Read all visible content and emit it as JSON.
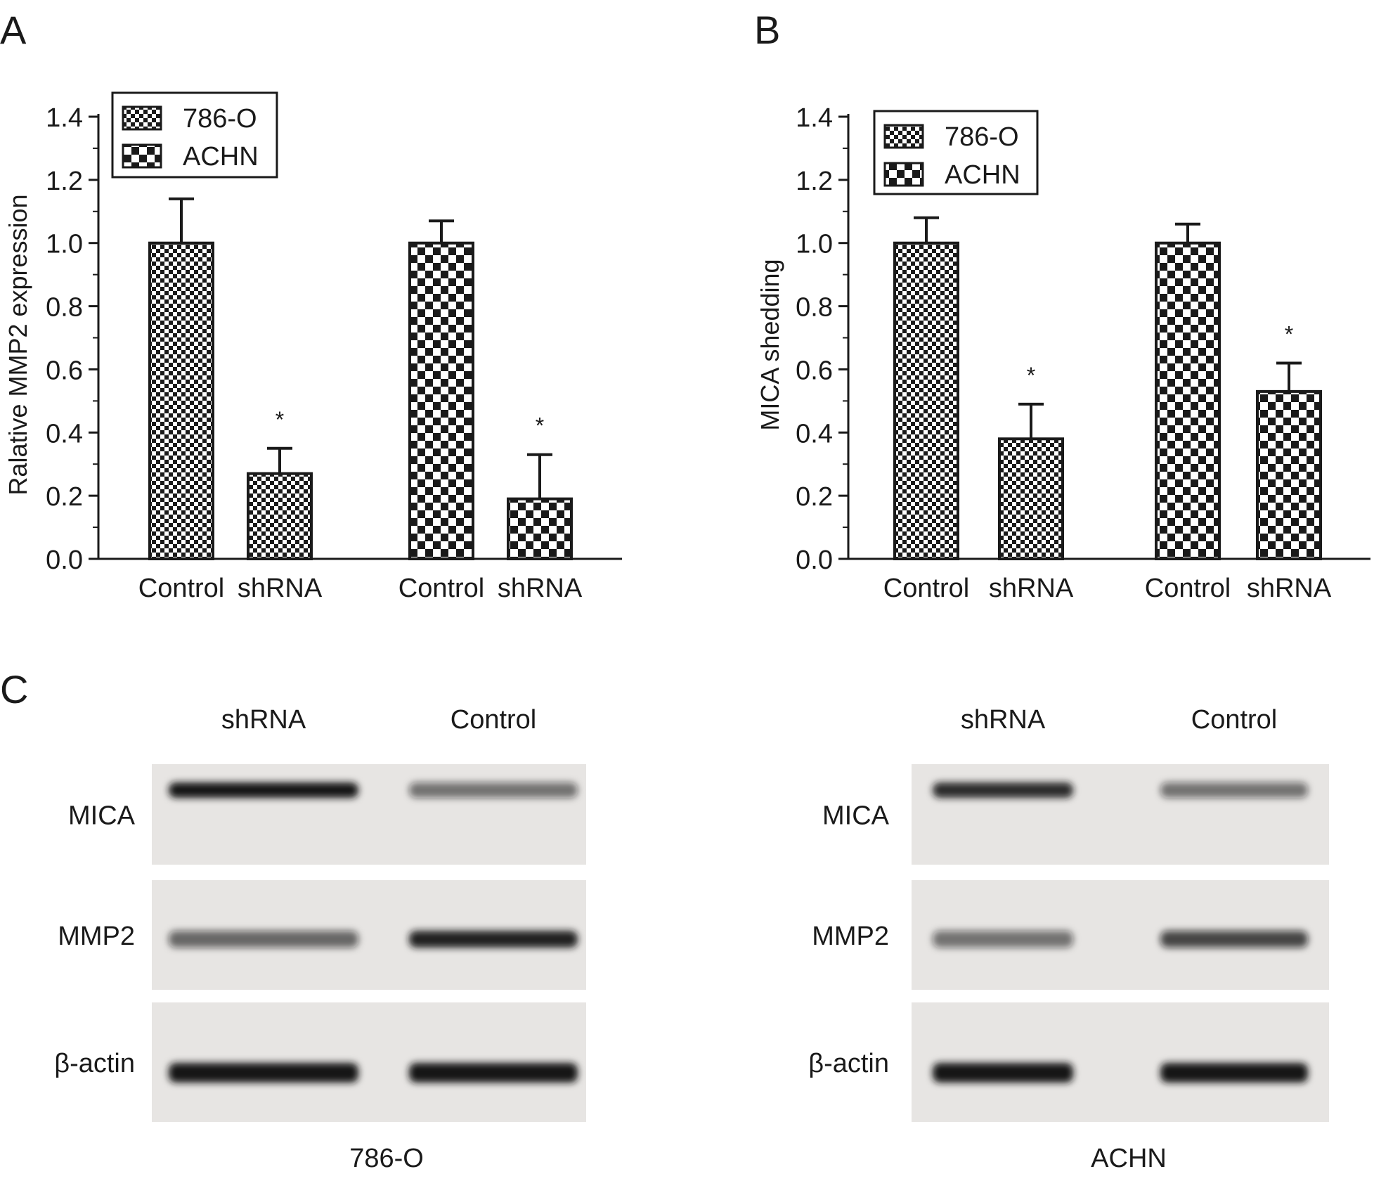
{
  "panels": {
    "a": "A",
    "b": "B",
    "c": "C"
  },
  "colors": {
    "ink": "#1a1a1a",
    "blot_background": "#e7e5e3",
    "band": "#141414"
  },
  "chart_data": [
    {
      "panel": "A",
      "type": "bar",
      "ylabel": "Ralative MMP2 expression",
      "ylim": [
        0,
        1.4
      ],
      "yticks": [
        "0.0",
        "0.2",
        "0.4",
        "0.6",
        "0.8",
        "1.0",
        "1.2",
        "1.4"
      ],
      "legend": {
        "placement": "top-left",
        "entries": [
          "786-O",
          "ACHN"
        ]
      },
      "categories": [
        "Control",
        "shRNA",
        "Control",
        "shRNA"
      ],
      "bars": [
        {
          "category": "Control",
          "series": "786-O",
          "value": 1.0,
          "error": 0.14,
          "marker": ""
        },
        {
          "category": "shRNA",
          "series": "786-O",
          "value": 0.27,
          "error": 0.08,
          "marker": "*"
        },
        {
          "category": "Control",
          "series": "ACHN",
          "value": 1.0,
          "error": 0.07,
          "marker": ""
        },
        {
          "category": "shRNA",
          "series": "ACHN",
          "value": 0.19,
          "error": 0.14,
          "marker": "*"
        }
      ]
    },
    {
      "panel": "B",
      "type": "bar",
      "ylabel": "MICA shedding",
      "ylim": [
        0,
        1.4
      ],
      "yticks": [
        "0.0",
        "0.2",
        "0.4",
        "0.6",
        "0.8",
        "1.0",
        "1.2",
        "1.4"
      ],
      "legend": {
        "placement": "top-left",
        "entries": [
          "786-O",
          "ACHN"
        ]
      },
      "categories": [
        "Control",
        "shRNA",
        "Control",
        "shRNA"
      ],
      "bars": [
        {
          "category": "Control",
          "series": "786-O",
          "value": 1.0,
          "error": 0.08,
          "marker": ""
        },
        {
          "category": "shRNA",
          "series": "786-O",
          "value": 0.38,
          "error": 0.11,
          "marker": "*"
        },
        {
          "category": "Control",
          "series": "ACHN",
          "value": 1.0,
          "error": 0.06,
          "marker": ""
        },
        {
          "category": "shRNA",
          "series": "ACHN",
          "value": 0.53,
          "error": 0.09,
          "marker": "*"
        }
      ]
    }
  ],
  "blots": [
    {
      "cell_line": "786-O",
      "lanes": [
        "shRNA",
        "Control"
      ],
      "rows": [
        {
          "label": "MICA",
          "band_levels": [
            1.0,
            0.55
          ]
        },
        {
          "label": "MMP2",
          "band_levels": [
            0.6,
            0.95
          ]
        },
        {
          "label": "β-actin",
          "band_levels": [
            1.0,
            1.0
          ]
        }
      ]
    },
    {
      "cell_line": "ACHN",
      "lanes": [
        "shRNA",
        "Control"
      ],
      "rows": [
        {
          "label": "MICA",
          "band_levels": [
            0.9,
            0.55
          ]
        },
        {
          "label": "MMP2",
          "band_levels": [
            0.55,
            0.75
          ]
        },
        {
          "label": "β-actin",
          "band_levels": [
            1.0,
            1.0
          ]
        }
      ]
    }
  ]
}
